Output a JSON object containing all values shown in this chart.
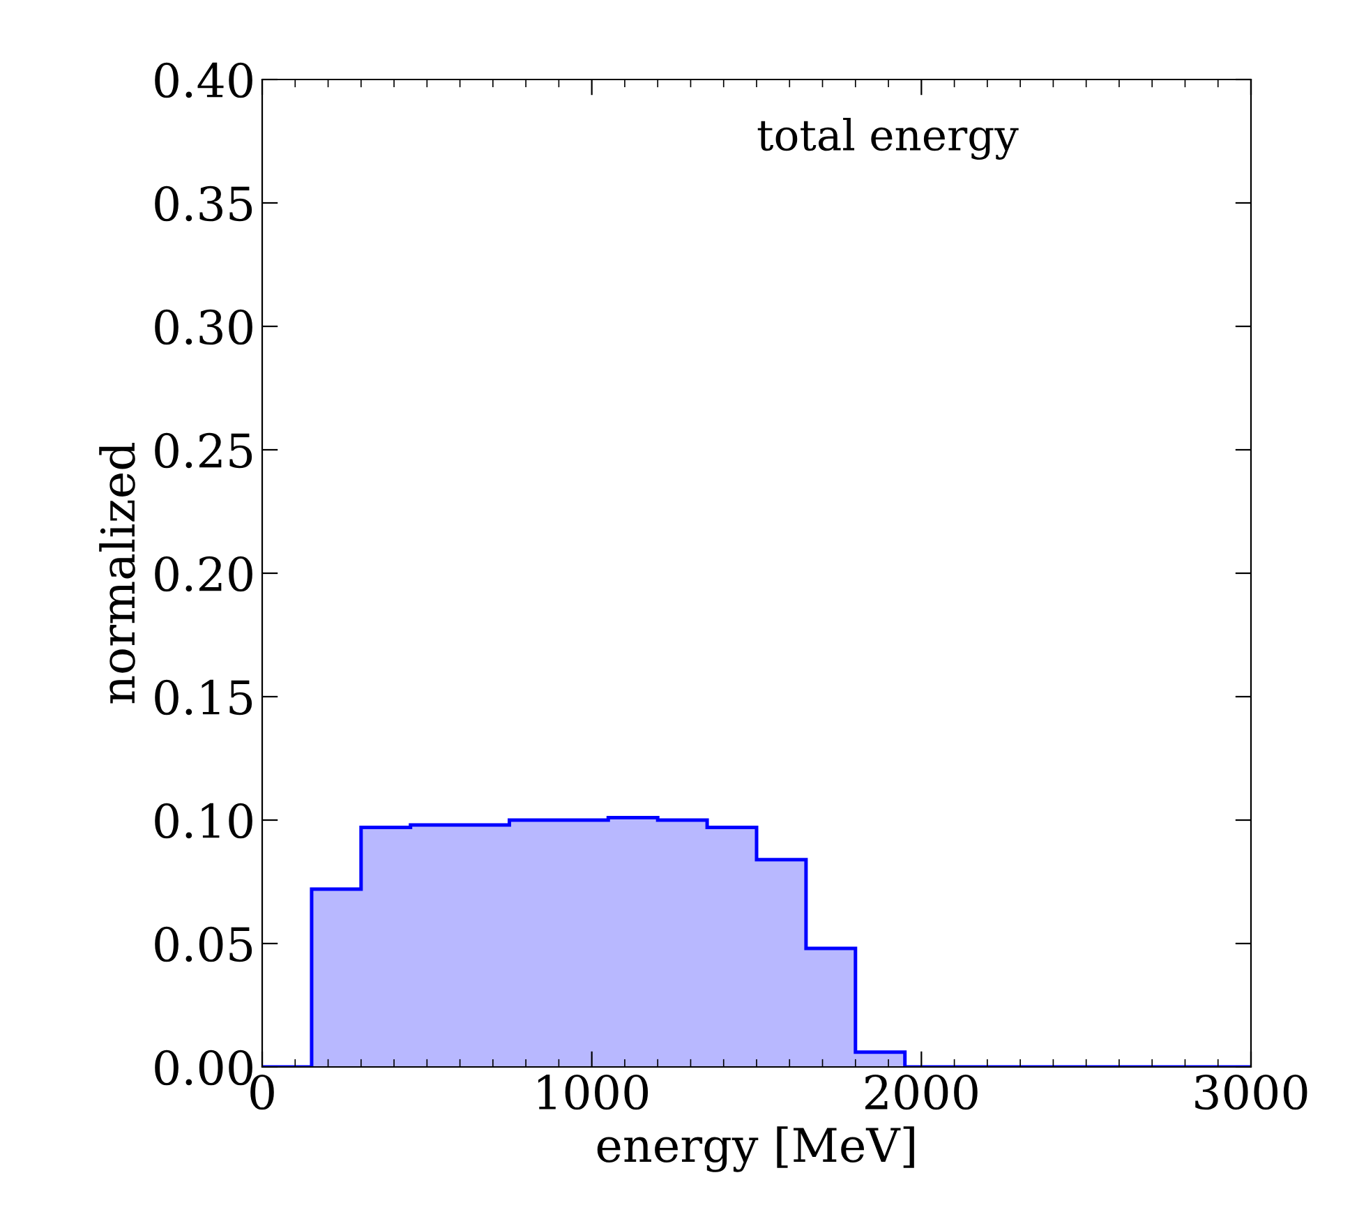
{
  "chart_data": {
    "type": "histogram",
    "xlabel": "energy [MeV]",
    "ylabel": "normalized",
    "annotations": [
      "total energy"
    ],
    "bins": [
      0,
      150,
      300,
      450,
      600,
      750,
      900,
      1050,
      1200,
      1350,
      1500,
      1650,
      1800,
      1950,
      2100,
      2250,
      2400,
      2550,
      2700,
      2850,
      3000
    ],
    "values": [
      0,
      0.072,
      0.097,
      0.098,
      0.098,
      0.1,
      0.1,
      0.101,
      0.1,
      0.097,
      0.084,
      0.048,
      0.006,
      0,
      0,
      0,
      0,
      0,
      0,
      0
    ],
    "color": "#0000ff",
    "xlim": [
      0,
      3000
    ],
    "xticks": [
      0,
      1000,
      2000,
      3000
    ],
    "ylim": [
      0,
      0.4
    ],
    "yticks": [
      {
        "value": 0,
        "label": "0.00"
      },
      {
        "value": 0.05,
        "label": "0.05"
      },
      {
        "value": 0.1,
        "label": "0.10"
      },
      {
        "value": 0.15,
        "label": "0.15"
      },
      {
        "value": 0.2,
        "label": "0.20"
      },
      {
        "value": 0.25,
        "label": "0.25"
      },
      {
        "value": 0.3,
        "label": "0.30"
      },
      {
        "value": 0.35,
        "label": "0.35"
      },
      {
        "value": 0.4,
        "label": "0.40"
      }
    ],
    "grid": false,
    "legend": false
  }
}
